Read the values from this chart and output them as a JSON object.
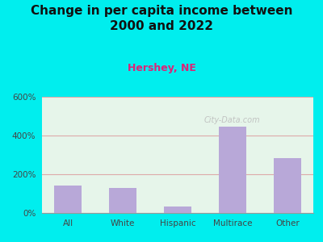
{
  "title": "Change in per capita income between\n2000 and 2022",
  "subtitle": "Hershey, NE",
  "categories": [
    "All",
    "White",
    "Hispanic",
    "Multirace",
    "Other"
  ],
  "values": [
    140,
    130,
    35,
    445,
    285
  ],
  "bar_color": "#b8a8d8",
  "title_fontsize": 11,
  "subtitle_fontsize": 9,
  "subtitle_color": "#dd2277",
  "title_color": "#111111",
  "tick_label_color": "#444444",
  "background_outer": "#00eeee",
  "background_plot": "#e6f5ea",
  "grid_color": "#ddaaaa",
  "ylim": [
    0,
    600
  ],
  "yticks": [
    0,
    200,
    400,
    600
  ],
  "ytick_labels": [
    "0%",
    "200%",
    "400%",
    "600%"
  ],
  "watermark": "City-Data.com"
}
